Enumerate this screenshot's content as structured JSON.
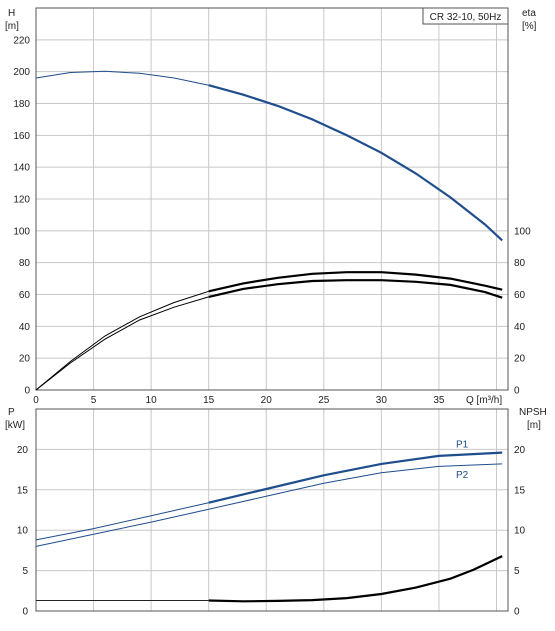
{
  "chart_data": [
    {
      "type": "line",
      "title": "CR 32-10, 50Hz",
      "xlabel": "Q [m³/h]",
      "xticks": [
        0,
        5,
        10,
        15,
        20,
        25,
        30,
        35
      ],
      "xlim": [
        0,
        41
      ],
      "ylabel_left_line1": "H",
      "ylabel_left_line2": "[m]",
      "ylabel_right_line1": "eta",
      "ylabel_right_line2": "[%]",
      "ylim_left": [
        0,
        240
      ],
      "yticks_left": [
        0,
        20,
        40,
        60,
        80,
        100,
        120,
        140,
        160,
        180,
        200,
        220
      ],
      "yticks_right": [
        0,
        20,
        40,
        60,
        80,
        100
      ],
      "grid": true,
      "colors": {
        "head": "#1f4e8c",
        "eta": "#000000"
      },
      "series": [
        {
          "key": "head",
          "x": [
            0,
            3,
            6,
            9,
            12,
            15,
            18,
            21,
            24,
            27,
            30,
            33,
            36,
            39,
            40.5
          ],
          "y": [
            196,
            199.5,
            200.2,
            199,
            196,
            191.5,
            185.5,
            178.5,
            170,
            160,
            149,
            136,
            121,
            104,
            94
          ],
          "solid_from": 15
        },
        {
          "key": "eta_upper",
          "x": [
            0,
            3,
            6,
            9,
            12,
            15,
            18,
            21,
            24,
            27,
            30,
            33,
            36,
            39,
            40.5
          ],
          "y": [
            0,
            18,
            34,
            46,
            55,
            62,
            67,
            70.5,
            73,
            74,
            74,
            72.5,
            70,
            65.5,
            63
          ],
          "solid_from": 15
        },
        {
          "key": "eta_lower",
          "x": [
            0,
            3,
            6,
            9,
            12,
            15,
            18,
            21,
            24,
            27,
            30,
            33,
            36,
            39,
            40.5
          ],
          "y": [
            0,
            17,
            32,
            44,
            52,
            58.5,
            63.5,
            66.5,
            68.5,
            69,
            69,
            68,
            66,
            61.5,
            58
          ],
          "solid_from": 15
        }
      ]
    },
    {
      "type": "line",
      "ylabel_left_line1": "P",
      "ylabel_left_line2": "[kW]",
      "ylabel_right_line1": "NPSH",
      "ylabel_right_line2": "[m]",
      "ylim": [
        0,
        25
      ],
      "yticks": [
        0,
        5,
        10,
        15,
        20
      ],
      "xlim": [
        0,
        41
      ],
      "grid": true,
      "colors": {
        "p1": "#1f4e8c",
        "p2": "#1f4e8c",
        "npsh": "#000000",
        "npsh_flat": "#222222"
      },
      "series": [
        {
          "key": "p1",
          "name": "P1",
          "x": [
            0,
            5,
            10,
            15,
            20,
            25,
            30,
            35,
            40.5
          ],
          "y": [
            8.8,
            10.2,
            11.8,
            13.4,
            15.1,
            16.8,
            18.2,
            19.2,
            19.6
          ],
          "solid_from": 15
        },
        {
          "key": "p2",
          "name": "P2",
          "x": [
            0,
            5,
            10,
            15,
            20,
            25,
            30,
            35,
            40.5
          ],
          "y": [
            8.0,
            9.5,
            11.0,
            12.6,
            14.2,
            15.8,
            17.1,
            17.9,
            18.2
          ],
          "solid_from": 50
        },
        {
          "key": "npsh",
          "x": [
            15,
            18,
            21,
            24,
            27,
            30,
            33,
            36,
            38,
            40.5
          ],
          "y": [
            1.3,
            1.2,
            1.25,
            1.35,
            1.6,
            2.1,
            2.9,
            4.0,
            5.1,
            6.8
          ],
          "solid_from": 15
        },
        {
          "key": "npsh_flat",
          "x": [
            0,
            15
          ],
          "y": [
            1.3,
            1.3
          ],
          "solid_from": 50
        }
      ]
    }
  ]
}
